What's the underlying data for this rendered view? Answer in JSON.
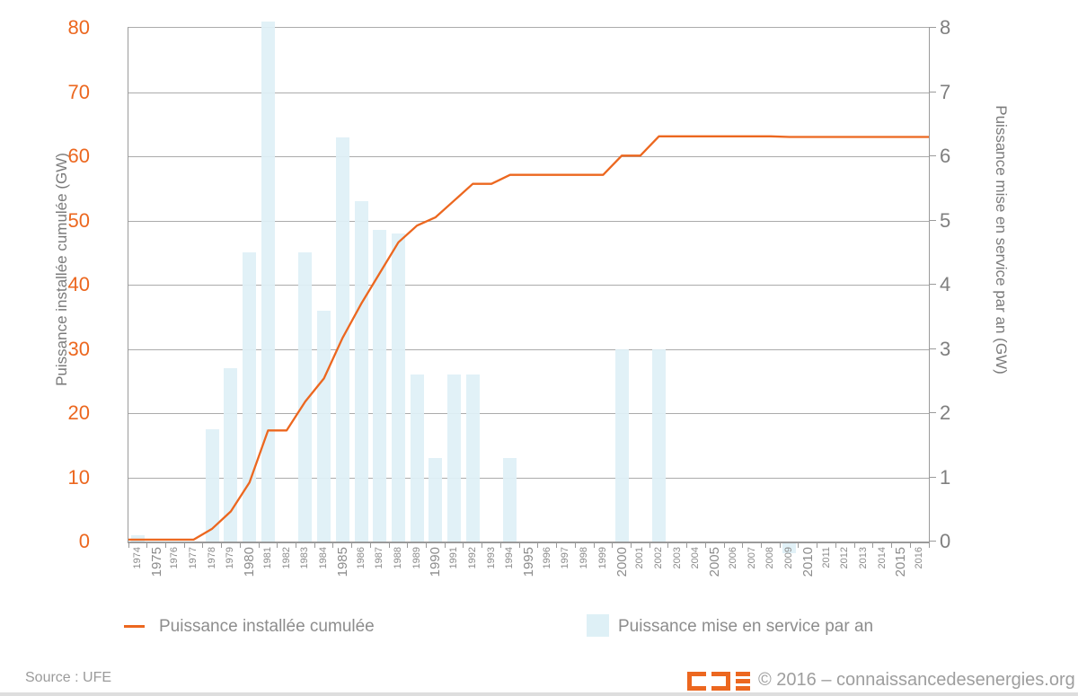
{
  "colors": {
    "accent_orange": "#EC671F",
    "bar_fill_light_blue": "#DEF0F6",
    "gridline_gray": "#ABABAB",
    "text_gray": "#8C8C8C"
  },
  "chart_data": {
    "type": "bar+line",
    "x": [
      1974,
      1975,
      1976,
      1977,
      1978,
      1979,
      1980,
      1981,
      1982,
      1983,
      1984,
      1985,
      1986,
      1987,
      1988,
      1989,
      1990,
      1991,
      1992,
      1993,
      1994,
      1995,
      1996,
      1997,
      1998,
      1999,
      2000,
      2001,
      2002,
      2003,
      2004,
      2005,
      2006,
      2007,
      2008,
      2009,
      2010,
      2011,
      2012,
      2013,
      2014,
      2015,
      2016
    ],
    "series": [
      {
        "name": "Puissance installée cumulée",
        "type": "line",
        "axis": "left",
        "color": "#EC671F",
        "values": [
          0.3,
          0.3,
          0.3,
          0.3,
          2.0,
          4.7,
          9.2,
          17.3,
          17.3,
          21.8,
          25.4,
          31.7,
          37.0,
          41.8,
          46.6,
          49.2,
          50.5,
          53.1,
          55.7,
          55.7,
          57.1,
          57.1,
          57.1,
          57.1,
          57.1,
          57.1,
          60.1,
          60.1,
          63.1,
          63.1,
          63.1,
          63.1,
          63.1,
          63.1,
          63.1,
          63.0,
          63.0,
          63.0,
          63.0,
          63.0,
          63.0,
          63.0,
          63.0
        ]
      },
      {
        "name": "Puissance mise en service par an",
        "type": "bar",
        "axis": "right",
        "color": "#DEF0F6",
        "values": [
          0.1,
          null,
          null,
          null,
          1.75,
          2.7,
          4.5,
          8.1,
          null,
          4.5,
          3.6,
          6.3,
          5.3,
          4.85,
          4.8,
          2.6,
          1.3,
          2.6,
          2.6,
          null,
          1.3,
          null,
          null,
          null,
          null,
          null,
          3.0,
          null,
          3.0,
          null,
          null,
          null,
          null,
          null,
          null,
          -0.15,
          null,
          null,
          null,
          null,
          null,
          null,
          null
        ]
      }
    ],
    "left_axis": {
      "label": "Puissance installée cumulée (GW)",
      "min": 0,
      "max": 80,
      "step": 10,
      "ticks": [
        0,
        10,
        20,
        30,
        40,
        50,
        60,
        70,
        80
      ],
      "tick_color": "#EC671F"
    },
    "right_axis": {
      "label": "Puissance mise en service par an (GW)",
      "min": 0,
      "max": 8,
      "step": 1,
      "ticks": [
        0,
        1,
        2,
        3,
        4,
        5,
        6,
        7,
        8
      ],
      "tick_color": "#7F7F7F"
    },
    "grid": true,
    "legend_position": "bottom"
  },
  "legend": {
    "line_label": "Puissance installée cumulée",
    "bar_label": "Puissance mise en service par an"
  },
  "footer": {
    "source": "Source : UFE",
    "copyright": "© 2016 – connaissancedesenergies.org",
    "logo": "CDE-logo (connaissancedesenergies)"
  }
}
